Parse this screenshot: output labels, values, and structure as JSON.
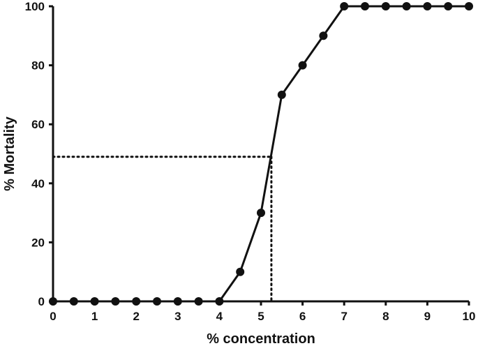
{
  "chart_data": {
    "type": "line",
    "title": "",
    "xlabel": "% concentration",
    "ylabel": "% Mortality",
    "xlim": [
      0,
      10
    ],
    "ylim": [
      0,
      100
    ],
    "xticks": [
      "0",
      "1",
      "2",
      "3",
      "4",
      "5",
      "6",
      "7",
      "8",
      "9",
      "10"
    ],
    "yticks": [
      "0",
      "20",
      "40",
      "60",
      "80",
      "100"
    ],
    "grid": false,
    "legend": "none",
    "series": [
      {
        "x": [
          0,
          0.5,
          1,
          1.5,
          2,
          2.5,
          3,
          3.5,
          4,
          4.5,
          5,
          5.5,
          6,
          6.5,
          7,
          7.5,
          8,
          8.5,
          9,
          9.5,
          10
        ],
        "y": [
          0,
          0,
          0,
          0,
          0,
          0,
          0,
          0,
          0,
          10,
          30,
          70,
          80,
          90,
          100,
          100,
          100,
          100,
          100,
          100,
          100
        ]
      }
    ],
    "annotations": [
      {
        "type": "dotted-reference",
        "x": 5.25,
        "y": 49
      }
    ],
    "colors": {
      "line": "#111111",
      "axis": "#111111",
      "background": "#ffffff"
    }
  }
}
